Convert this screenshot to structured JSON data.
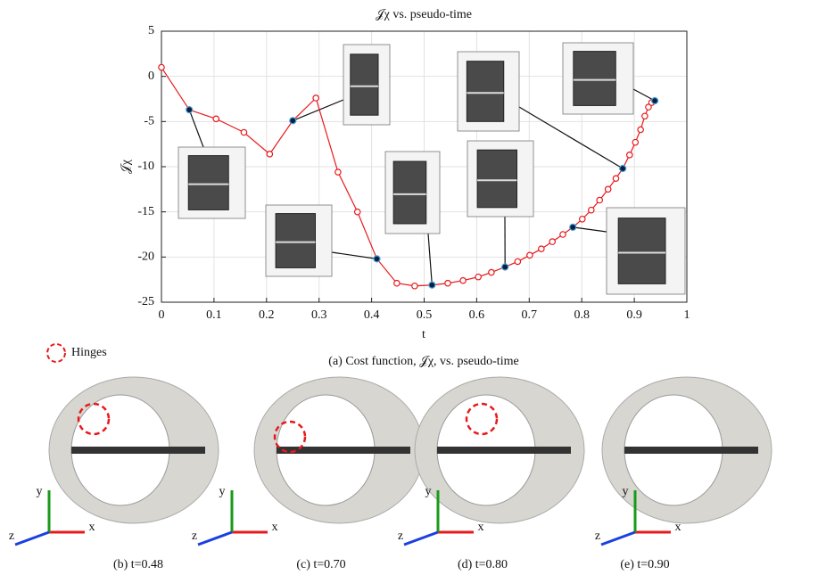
{
  "chart_data": {
    "type": "line",
    "title": "𝒥χ vs. pseudo-time",
    "x_label": "t",
    "y_label": "𝒥χ",
    "xlim": [
      0,
      1
    ],
    "ylim": [
      -25,
      5
    ],
    "xticks": [
      0,
      0.1,
      0.2,
      0.3,
      0.4,
      0.5,
      0.6,
      0.7,
      0.8,
      0.9,
      1
    ],
    "yticks": [
      -25,
      -20,
      -15,
      -10,
      -5,
      0,
      5
    ],
    "grid": true,
    "series": [
      {
        "color": "#e8191c",
        "line": true,
        "x": [
          0,
          0.053,
          0.104,
          0.157,
          0.206,
          0.25,
          0.294,
          0.336,
          0.373,
          0.41,
          0.448,
          0.482,
          0.515,
          0.545,
          0.574,
          0.603,
          0.628,
          0.654,
          0.678,
          0.701,
          0.723,
          0.744,
          0.764,
          0.783,
          0.801,
          0.818,
          0.834,
          0.85,
          0.865,
          0.878,
          0.891,
          0.902,
          0.912,
          0.92,
          0.927,
          0.933,
          0.939
        ],
        "values": [
          1,
          -3.7,
          -4.7,
          -6.2,
          -8.6,
          -4.9,
          -2.4,
          -10.6,
          -15,
          -20.2,
          -22.9,
          -23.2,
          -23.1,
          -22.9,
          -22.6,
          -22.2,
          -21.7,
          -21.1,
          -20.5,
          -19.8,
          -19.1,
          -18.3,
          -17.5,
          -16.7,
          -15.8,
          -14.8,
          -13.7,
          -12.5,
          -11.3,
          -10.2,
          -8.7,
          -7.3,
          -5.9,
          -4.4,
          -3.4,
          -2.9,
          -2.7
        ]
      },
      {
        "color": "#0b1f3f",
        "line": false,
        "x": [
          0.053,
          0.25,
          0.41,
          0.515,
          0.654,
          0.783,
          0.878,
          0.939
        ],
        "values": [
          -3.7,
          -4.9,
          -20.2,
          -23.1,
          -21.1,
          -16.7,
          -10.2,
          -2.7
        ]
      }
    ]
  },
  "caption_a": "(a) Cost function, 𝒥χ, vs. pseudo-time",
  "legend": {
    "hinges": "Hinges"
  },
  "panels": [
    {
      "caption": "(b) t=0.48",
      "axes": [
        "x",
        "y",
        "z"
      ]
    },
    {
      "caption": "(c) t=0.70",
      "axes": [
        "x",
        "y",
        "z"
      ]
    },
    {
      "caption": "(d) t=0.80",
      "axes": [
        "x",
        "y",
        "z"
      ]
    },
    {
      "caption": "(e) t=0.90",
      "axes": [
        "x",
        "y",
        "z"
      ]
    }
  ]
}
